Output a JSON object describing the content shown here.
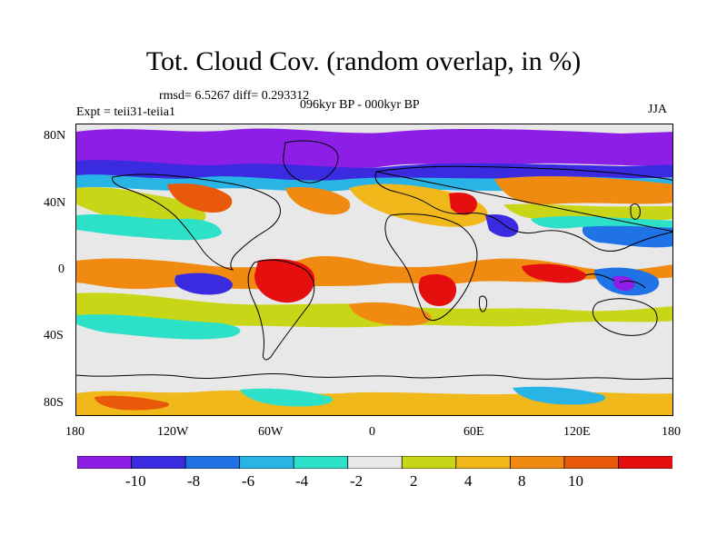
{
  "title": "Tot. Cloud Cov. (random overlap, in %)",
  "stats": "rmsd= 6.5267 diff= 0.293312",
  "experiment": "Expt = teii31-teiia1",
  "period": "096kyr BP - 000kyr BP",
  "season": "JJA",
  "x_axis": {
    "ticks": [
      "180",
      "120W",
      "60W",
      "0",
      "60E",
      "120E",
      "180"
    ]
  },
  "y_axis": {
    "ticks": [
      "80N",
      "40N",
      "0",
      "40S",
      "80S"
    ]
  },
  "colorbar": {
    "colors": [
      "#8c1ee6",
      "#3a2be0",
      "#1f73e6",
      "#29b4e6",
      "#2de0c8",
      "#e8e8e8",
      "#c8d617",
      "#f0b81a",
      "#f08a10",
      "#e85a0a",
      "#e60f0f"
    ],
    "labels": [
      "-10",
      "-8",
      "-6",
      "-4",
      "-2",
      "2",
      "4",
      "8",
      "10"
    ]
  },
  "map_layer_colors": {
    "background": "#e8e8e8",
    "coastline": "#000000"
  }
}
